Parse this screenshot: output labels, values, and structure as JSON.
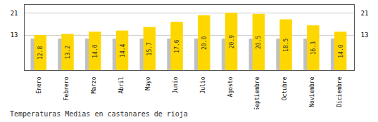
{
  "chart_data": {
    "type": "bar",
    "title": "Temperaturas Medias en castanares de rioja",
    "categories": [
      "Enero",
      "Febrero",
      "Marzo",
      "Abril",
      "Mayo",
      "Junio",
      "Julio",
      "Agosto",
      "Septiembre",
      "Octubre",
      "Noviembre",
      "Diciembre"
    ],
    "series": [
      {
        "color": "#C0C0C0",
        "values": [
          11.5,
          11.5,
          11.5,
          11.5,
          11.5,
          11.5,
          11.5,
          11.5,
          11.5,
          11.5,
          11.5,
          11.5
        ]
      },
      {
        "color": "#FFD700",
        "values": [
          12.8,
          13.2,
          14.0,
          14.4,
          15.7,
          17.6,
          20.0,
          20.9,
          20.5,
          18.5,
          16.3,
          14.0
        ],
        "data_labels": true,
        "value_labels": [
          "12.8",
          "13.2",
          "14.0",
          "14.4",
          "15.7",
          "17.6",
          "20.0",
          "20.9",
          "20.5",
          "18.5",
          "16.3",
          "14.0"
        ]
      }
    ],
    "ylim": [
      0,
      24
    ],
    "yticks": [
      12.8,
      20.9
    ],
    "grid": true
  }
}
